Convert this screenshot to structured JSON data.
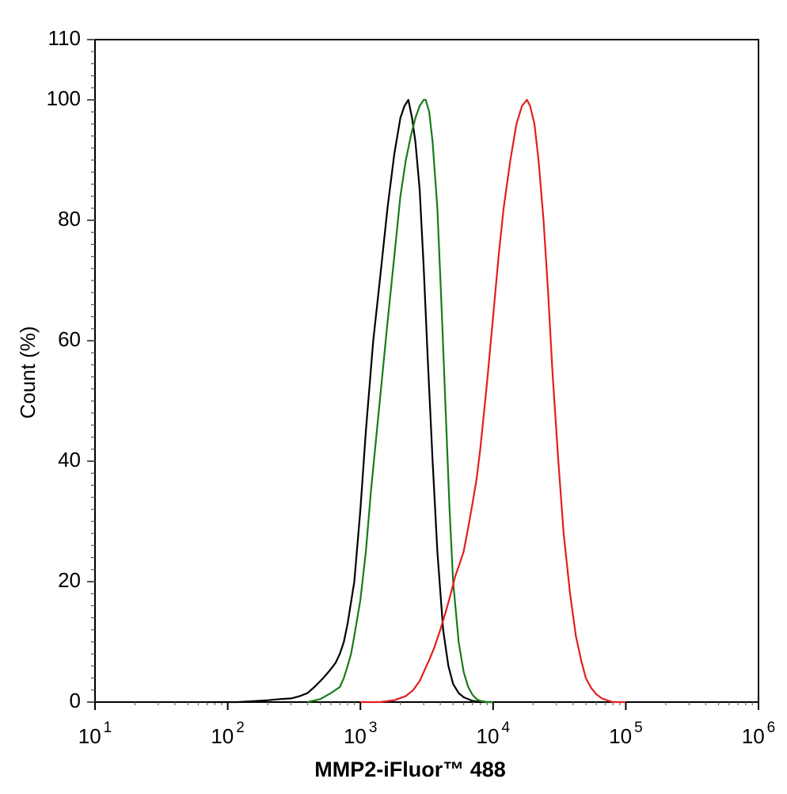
{
  "chart_data": {
    "type": "line",
    "title": "",
    "xlabel": "MMP2-iFluor™ 488",
    "ylabel": "Count  (%)",
    "xscale": "log",
    "xlim": [
      10,
      1000000
    ],
    "ylim": [
      0,
      110
    ],
    "x_ticks": [
      {
        "base": "10",
        "exp": "1"
      },
      {
        "base": "10",
        "exp": "2"
      },
      {
        "base": "10",
        "exp": "3"
      },
      {
        "base": "10",
        "exp": "4"
      },
      {
        "base": "10",
        "exp": "5"
      },
      {
        "base": "10",
        "exp": "6"
      }
    ],
    "y_ticks": [
      "0",
      "20",
      "40",
      "60",
      "80",
      "100",
      "110"
    ],
    "grid": false,
    "legend": "none",
    "series": [
      {
        "color": "#000000",
        "x": [
          70,
          120,
          200,
          250,
          300,
          350,
          400,
          450,
          500,
          550,
          600,
          650,
          700,
          750,
          800,
          900,
          1000,
          1100,
          1250,
          1400,
          1600,
          1800,
          2000,
          2150,
          2300,
          2450,
          2600,
          2800,
          3000,
          3200,
          3500,
          3800,
          4200,
          4600,
          5000,
          5500,
          6000,
          7000,
          8000,
          10000
        ],
        "y": [
          0,
          0,
          0.3,
          0.5,
          0.6,
          1.0,
          1.5,
          2.5,
          3.5,
          4.5,
          5.5,
          6.5,
          8,
          10,
          13,
          20,
          32,
          45,
          60,
          70,
          82,
          91,
          97,
          99,
          100,
          97,
          93,
          85,
          72,
          58,
          40,
          25,
          12,
          6,
          3,
          1.5,
          0.8,
          0.2,
          0,
          0
        ]
      },
      {
        "color": "#1a7a1a",
        "x": [
          400,
          500,
          600,
          700,
          750,
          800,
          850,
          900,
          1000,
          1100,
          1200,
          1400,
          1600,
          1800,
          2000,
          2200,
          2400,
          2600,
          2800,
          3000,
          3100,
          3300,
          3500,
          3800,
          4100,
          4400,
          4700,
          5000,
          5500,
          6000,
          6500,
          7000,
          7500,
          8000,
          9000,
          10000
        ],
        "y": [
          0,
          0.5,
          1.5,
          2.5,
          4,
          6,
          8,
          11,
          17,
          25,
          35,
          50,
          63,
          74,
          84,
          90,
          94,
          97,
          99,
          100,
          100,
          98,
          93,
          82,
          65,
          48,
          32,
          20,
          10,
          5,
          2.5,
          1.2,
          0.5,
          0.2,
          0,
          0
        ]
      },
      {
        "color": "#e31e1e",
        "x": [
          1000,
          1400,
          1800,
          2200,
          2500,
          2800,
          3000,
          3300,
          3600,
          4000,
          4400,
          4800,
          5200,
          5600,
          6000,
          6500,
          7000,
          7500,
          8000,
          9000,
          10000,
          11000,
          12000,
          13500,
          15000,
          16500,
          18000,
          19000,
          20500,
          22000,
          24000,
          26000,
          28000,
          31000,
          34000,
          38000,
          42000,
          46000,
          50000,
          55000,
          60000,
          66000,
          72000,
          80000,
          90000,
          100000
        ],
        "y": [
          0,
          0,
          0.3,
          1,
          2,
          3.5,
          5,
          7,
          9,
          12,
          15,
          18,
          21,
          23,
          25,
          29,
          33,
          37,
          42,
          53,
          64,
          74,
          82,
          90,
          96,
          99,
          100,
          99,
          96,
          90,
          80,
          68,
          55,
          40,
          28,
          18,
          11,
          7,
          4,
          2.3,
          1.3,
          0.6,
          0.3,
          0,
          0,
          0
        ]
      }
    ]
  }
}
